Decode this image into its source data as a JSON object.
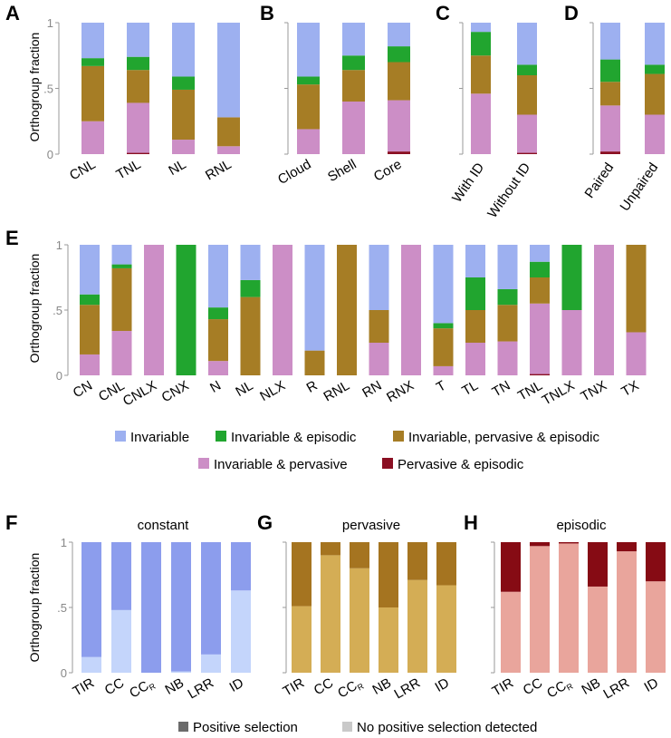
{
  "colors": {
    "Invariable": "#9db0f0",
    "Invariable & episodic": "#21a52f",
    "Invariable, pervasive & episodic": "#a67d25",
    "Invariable & pervasive": "#cc8ec6",
    "Pervasive & episodic": "#8a0f22",
    "constant_pos": "#8c9ded",
    "constant_no": "#c4d5fb",
    "pervasive_pos": "#a57420",
    "pervasive_no": "#d4ad55",
    "episodic_pos": "#860b14",
    "episodic_no": "#e9a59c",
    "legend_pos": "#6b6b6b",
    "legend_no": "#c9c9c9"
  },
  "ylabel": "Orthogroup fraction",
  "yticks": [
    "0",
    ".5",
    "1"
  ],
  "legend_top": [
    "Invariable",
    "Invariable & episodic",
    "Invariable, pervasive & episodic",
    "Invariable & pervasive",
    "Pervasive & episodic"
  ],
  "legend_bottom": [
    "Positive selection",
    "No positive selection detected"
  ],
  "chart_data": [
    {
      "panel": "A",
      "type": "bar",
      "stacked": true,
      "ylim": [
        0,
        1
      ],
      "ylabel": "Orthogroup fraction",
      "categories": [
        "CNL",
        "TNL",
        "NL",
        "RNL"
      ],
      "series": [
        {
          "name": "Pervasive & episodic",
          "values": [
            0,
            0.01,
            0,
            0
          ]
        },
        {
          "name": "Invariable & pervasive",
          "values": [
            0.25,
            0.38,
            0.11,
            0.06
          ]
        },
        {
          "name": "Invariable, pervasive & episodic",
          "values": [
            0.42,
            0.25,
            0.38,
            0.22
          ]
        },
        {
          "name": "Invariable & episodic",
          "values": [
            0.06,
            0.1,
            0.1,
            0
          ]
        },
        {
          "name": "Invariable",
          "values": [
            0.27,
            0.26,
            0.41,
            0.72
          ]
        }
      ]
    },
    {
      "panel": "B",
      "type": "bar",
      "stacked": true,
      "ylim": [
        0,
        1
      ],
      "categories": [
        "Cloud",
        "Shell",
        "Core"
      ],
      "series": [
        {
          "name": "Pervasive & episodic",
          "values": [
            0,
            0,
            0.02
          ]
        },
        {
          "name": "Invariable & pervasive",
          "values": [
            0.19,
            0.4,
            0.39
          ]
        },
        {
          "name": "Invariable, pervasive & episodic",
          "values": [
            0.34,
            0.24,
            0.29
          ]
        },
        {
          "name": "Invariable & episodic",
          "values": [
            0.06,
            0.11,
            0.12
          ]
        },
        {
          "name": "Invariable",
          "values": [
            0.41,
            0.25,
            0.18
          ]
        }
      ]
    },
    {
      "panel": "C",
      "type": "bar",
      "stacked": true,
      "ylim": [
        0,
        1
      ],
      "categories": [
        "With ID",
        "Without ID"
      ],
      "series": [
        {
          "name": "Pervasive & episodic",
          "values": [
            0,
            0.01
          ]
        },
        {
          "name": "Invariable & pervasive",
          "values": [
            0.46,
            0.29
          ]
        },
        {
          "name": "Invariable, pervasive & episodic",
          "values": [
            0.29,
            0.3
          ]
        },
        {
          "name": "Invariable & episodic",
          "values": [
            0.18,
            0.08
          ]
        },
        {
          "name": "Invariable",
          "values": [
            0.07,
            0.32
          ]
        }
      ]
    },
    {
      "panel": "D",
      "type": "bar",
      "stacked": true,
      "ylim": [
        0,
        1
      ],
      "categories": [
        "Paired",
        "Unpaired"
      ],
      "series": [
        {
          "name": "Pervasive & episodic",
          "values": [
            0.02,
            0
          ]
        },
        {
          "name": "Invariable & pervasive",
          "values": [
            0.35,
            0.3
          ]
        },
        {
          "name": "Invariable, pervasive & episodic",
          "values": [
            0.18,
            0.31
          ]
        },
        {
          "name": "Invariable & episodic",
          "values": [
            0.17,
            0.07
          ]
        },
        {
          "name": "Invariable",
          "values": [
            0.28,
            0.32
          ]
        }
      ]
    },
    {
      "panel": "E",
      "type": "bar",
      "stacked": true,
      "ylim": [
        0,
        1
      ],
      "ylabel": "Orthogroup fraction",
      "categories": [
        "CN",
        "CNL",
        "CNLX",
        "CNX",
        "N",
        "NL",
        "NLX",
        "R",
        "RNL",
        "RN",
        "RNX",
        "T",
        "TL",
        "TN",
        "TNL",
        "TNLX",
        "TNX",
        "TX"
      ],
      "series": [
        {
          "name": "Pervasive & episodic",
          "values": [
            0,
            0,
            0,
            0,
            0,
            0,
            0,
            0,
            0,
            0,
            0,
            0,
            0,
            0,
            0.01,
            0,
            0,
            0
          ]
        },
        {
          "name": "Invariable & pervasive",
          "values": [
            0.16,
            0.34,
            1.0,
            0,
            0.11,
            0,
            1.0,
            0,
            0,
            0.25,
            1.0,
            0.07,
            0.25,
            0.26,
            0.54,
            0.5,
            1.0,
            0.33
          ]
        },
        {
          "name": "Invariable, pervasive & episodic",
          "values": [
            0.38,
            0.48,
            0,
            0,
            0.32,
            0.6,
            0,
            0.19,
            1.0,
            0.25,
            0,
            0.29,
            0.25,
            0.28,
            0.2,
            0,
            0,
            0.67
          ]
        },
        {
          "name": "Invariable & episodic",
          "values": [
            0.08,
            0.03,
            0,
            1.0,
            0.09,
            0.13,
            0,
            0,
            0,
            0,
            0,
            0.04,
            0.25,
            0.12,
            0.12,
            0.5,
            0,
            0
          ]
        },
        {
          "name": "Invariable",
          "values": [
            0.38,
            0.15,
            0,
            0,
            0.48,
            0.27,
            0,
            0.81,
            0,
            0.5,
            0,
            0.6,
            0.25,
            0.34,
            0.13,
            0,
            0,
            0
          ]
        }
      ]
    },
    {
      "panel": "F",
      "type": "bar",
      "stacked": true,
      "ylim": [
        0,
        1
      ],
      "ylabel": "Orthogroup fraction",
      "title": "constant",
      "categories": [
        "TIR",
        "CC",
        "CC_R",
        "NB",
        "LRR",
        "ID"
      ],
      "series": [
        {
          "name": "No positive selection detected",
          "values": [
            0.12,
            0.48,
            0,
            0.01,
            0.14,
            0.63
          ]
        },
        {
          "name": "Positive selection",
          "values": [
            0.88,
            0.52,
            1.0,
            0.99,
            0.86,
            0.37
          ]
        }
      ]
    },
    {
      "panel": "G",
      "type": "bar",
      "stacked": true,
      "ylim": [
        0,
        1
      ],
      "title": "pervasive",
      "categories": [
        "TIR",
        "CC",
        "CC_R",
        "NB",
        "LRR",
        "ID"
      ],
      "series": [
        {
          "name": "No positive selection detected",
          "values": [
            0.51,
            0.9,
            0.8,
            0.5,
            0.71,
            0.67
          ]
        },
        {
          "name": "Positive selection",
          "values": [
            0.49,
            0.1,
            0.2,
            0.5,
            0.29,
            0.33
          ]
        }
      ]
    },
    {
      "panel": "H",
      "type": "bar",
      "stacked": true,
      "ylim": [
        0,
        1
      ],
      "title": "episodic",
      "categories": [
        "TIR",
        "CC",
        "CC_R",
        "NB",
        "LRR",
        "ID"
      ],
      "series": [
        {
          "name": "No positive selection detected",
          "values": [
            0.62,
            0.97,
            0.99,
            0.66,
            0.93,
            0.7
          ]
        },
        {
          "name": "Positive selection",
          "values": [
            0.38,
            0.03,
            0.01,
            0.34,
            0.07,
            0.3
          ]
        }
      ]
    }
  ]
}
